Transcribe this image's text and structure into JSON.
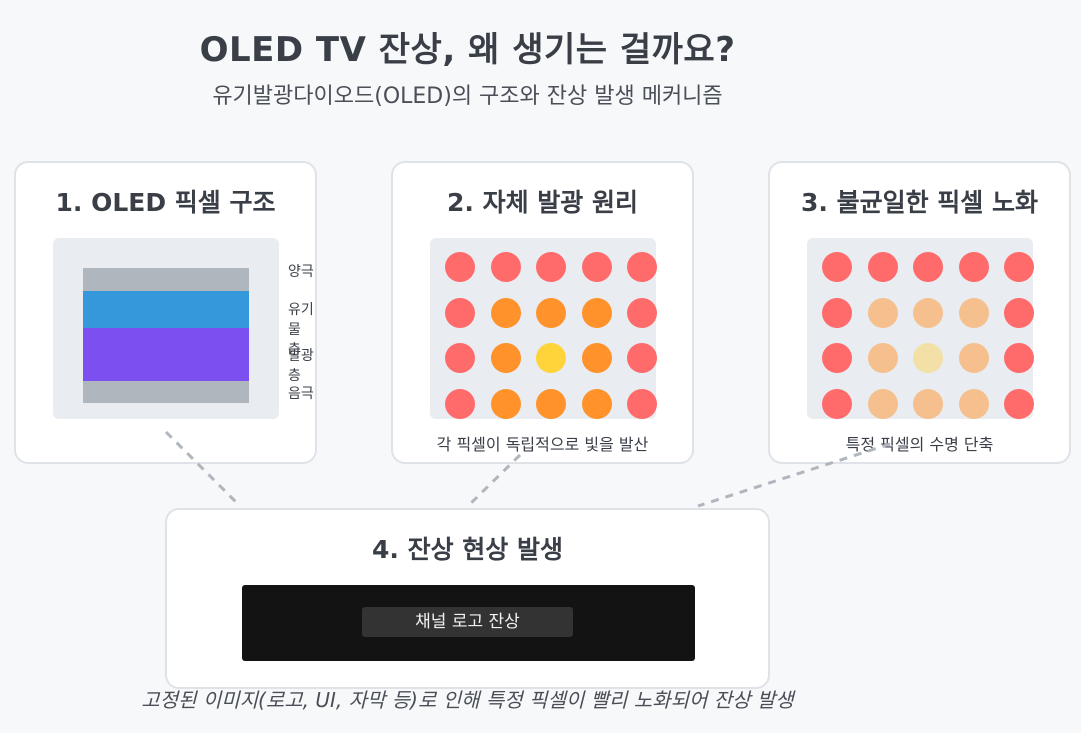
{
  "title": "OLED TV 잔상, 왜 생기는 걸까요?",
  "subtitle": "유기발광다이오드(OLED)의 구조와 잔상 발생 메커니즘",
  "cards": {
    "structure": {
      "title": "1. OLED 픽셀 구조",
      "layers": [
        {
          "label": "양극",
          "color": "#b0b6bd"
        },
        {
          "label": "유기물 층",
          "color": "#3498db"
        },
        {
          "label": "발광층",
          "color": "#7b4ff0"
        },
        {
          "label": "음극",
          "color": "#b0b6bd"
        }
      ]
    },
    "emission": {
      "title": "2. 자체 발광 원리",
      "caption": "각 픽셀이 독립적으로 빛을 발산",
      "grid": [
        [
          "#ff6b6b",
          "#ff6b6b",
          "#ff6b6b",
          "#ff6b6b",
          "#ff6b6b"
        ],
        [
          "#ff6b6b",
          "#ff922b",
          "#ff922b",
          "#ff922b",
          "#ff6b6b"
        ],
        [
          "#ff6b6b",
          "#ff922b",
          "#ffd43b",
          "#ff922b",
          "#ff6b6b"
        ],
        [
          "#ff6b6b",
          "#ff922b",
          "#ff922b",
          "#ff922b",
          "#ff6b6b"
        ]
      ]
    },
    "degradation": {
      "title": "3. 불균일한 픽셀 노화",
      "caption": "특정 픽셀의 수명 단축",
      "grid": [
        [
          "#ff6b6b",
          "#ff6b6b",
          "#ff6b6b",
          "#ff6b6b",
          "#ff6b6b"
        ],
        [
          "#ff6b6b",
          "#f5c08e",
          "#f5c08e",
          "#f5c08e",
          "#ff6b6b"
        ],
        [
          "#ff6b6b",
          "#f5c08e",
          "#f2e0a6",
          "#f5c08e",
          "#ff6b6b"
        ],
        [
          "#ff6b6b",
          "#f5c08e",
          "#f5c08e",
          "#f5c08e",
          "#ff6b6b"
        ]
      ]
    },
    "burnin": {
      "title": "4. 잔상 현상 발생",
      "logo_label": "채널 로고 잔상"
    }
  },
  "footer": "고정된 이미지(로고, UI, 자막 등)로 인해 특정 픽셀이 빨리 노화되어 잔상 발생",
  "colors": {
    "connector": "#b0b6bd",
    "screen": "#131313",
    "logo_bg": "#333333"
  }
}
